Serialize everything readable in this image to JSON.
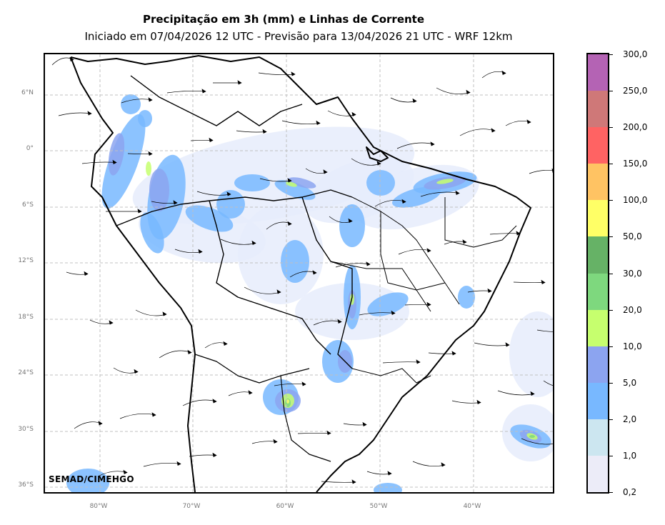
{
  "title": "Precipitação em 3h (mm) e Linhas de Corrente",
  "subtitle": "Iniciado em 07/04/2026 12 UTC - Previsão para 13/04/2026 21 UTC - WRF 12km",
  "credit": "SEMAD/CIMEHGO",
  "lat_labels": [
    "6°N",
    "0°",
    "6°S",
    "12°S",
    "18°S",
    "24°S",
    "30°S",
    "36°S"
  ],
  "lon_labels": [
    "80°W",
    "70°W",
    "60°W",
    "50°W",
    "40°W"
  ],
  "colorbar": {
    "labels": [
      "300,0",
      "250,0",
      "200,0",
      "150,0",
      "100,0",
      "50,0",
      "30,0",
      "20,0",
      "10,0",
      "5,0",
      "2,0",
      "1,0",
      "0,2"
    ],
    "colors": [
      "#b463b4",
      "#cf7878",
      "#ff6363",
      "#ffc363",
      "#ffff66",
      "#66b266",
      "#7ed87e",
      "#c6ff6e",
      "#8ca4f0",
      "#78b8ff",
      "#cce6f0",
      "#ececf8"
    ]
  },
  "gridline_color": "#c0c0c0",
  "coastline_color": "#000000"
}
